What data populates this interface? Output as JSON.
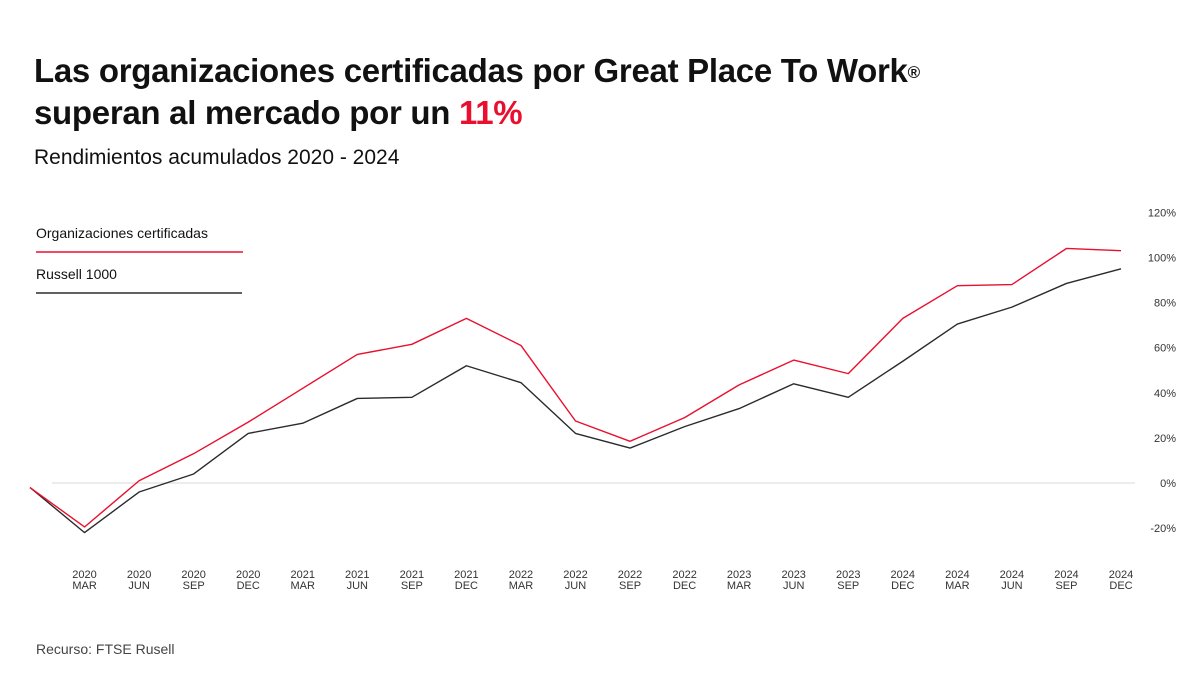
{
  "title": {
    "line1": "Las organizaciones certificadas por Great Place To Work",
    "registered": "®",
    "line2_prefix": "superan al mercado por un ",
    "line2_highlight": "11%"
  },
  "subtitle": "Rendimientos acumulados 2020 - 2024",
  "source": "Recurso: FTSE Rusell",
  "colors": {
    "accent": "#e8102e",
    "russell": "#2b2b2b",
    "zero_line": "#e6e6e6"
  },
  "chart_data": {
    "type": "line",
    "title": "",
    "xlabel": "",
    "ylabel": "",
    "ylim": [
      -20,
      120
    ],
    "yticks": [
      "120%",
      "100%",
      "80%",
      "60%",
      "40%",
      "20%",
      "0%",
      "-20%"
    ],
    "ytick_values": [
      120,
      100,
      80,
      60,
      40,
      20,
      0,
      -20
    ],
    "y_axis_side": "right",
    "grid": "zero line only",
    "legend": "top-left",
    "categories": [
      "",
      "2020 MAR",
      "2020 JUN",
      "2020 SEP",
      "2020 DEC",
      "2021 MAR",
      "2021 JUN",
      "2021 SEP",
      "2021 DEC",
      "2022 MAR",
      "2022 JUN",
      "2022 SEP",
      "2022 DEC",
      "2023 MAR",
      "2023 JUN",
      "2023 SEP",
      "2024 DEC",
      "2024 MAR",
      "2024 JUN",
      "2024 SEP",
      "2024 DEC"
    ],
    "series": [
      {
        "name": "Organizaciones certificadas",
        "color": "#e8102e",
        "values": [
          -2,
          -19.5,
          1,
          13,
          27,
          42,
          57,
          61.5,
          73,
          61,
          27.5,
          18.5,
          29,
          43.5,
          54.5,
          48.5,
          73,
          87.5,
          88,
          104,
          103
        ]
      },
      {
        "name": "Russell 1000",
        "color": "#2b2b2b",
        "values": [
          -2,
          -22,
          -4,
          4,
          22,
          26.5,
          37.5,
          38,
          52,
          44.5,
          22,
          15.5,
          25,
          33,
          44,
          38,
          54,
          70.5,
          78,
          88.5,
          95
        ]
      }
    ]
  }
}
